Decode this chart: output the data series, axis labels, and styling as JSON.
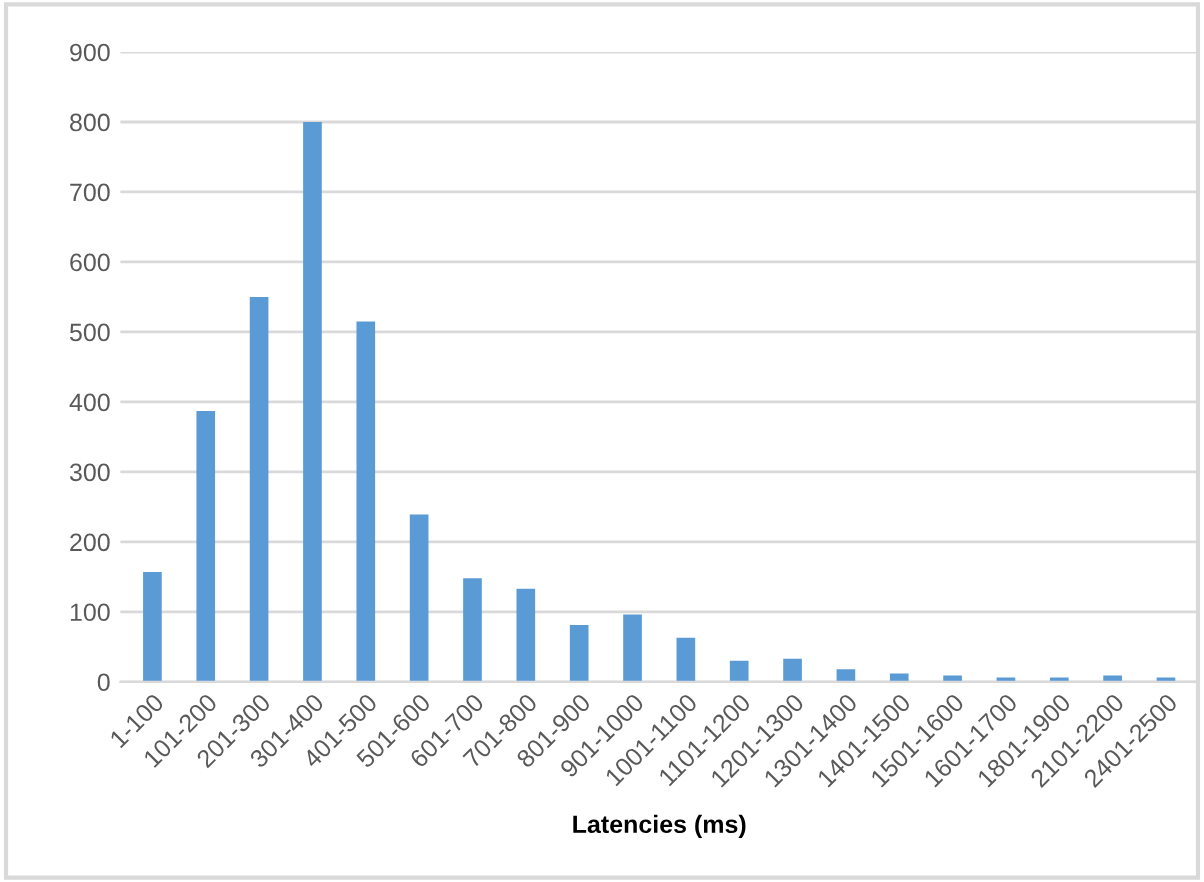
{
  "chart_data": {
    "type": "bar",
    "xlabel": "Latencies (ms)",
    "categories": [
      "1-100",
      "101-200",
      "201-300",
      "301-400",
      "401-500",
      "501-600",
      "601-700",
      "701-800",
      "801-900",
      "901-1000",
      "1001-1100",
      "1101-1200",
      "1201-1300",
      "1301-1400",
      "1401-1500",
      "1501-1600",
      "1601-1700",
      "1801-1900",
      "2101-2200",
      "2401-2500"
    ],
    "values": [
      157,
      387,
      550,
      800,
      515,
      239,
      148,
      133,
      81,
      96,
      63,
      30,
      33,
      18,
      12,
      9,
      6,
      6,
      9,
      6
    ],
    "color": "#5b9bd5",
    "ylim": [
      0,
      900
    ],
    "yticks": [
      0,
      100,
      200,
      300,
      400,
      500,
      600,
      700,
      800,
      900
    ],
    "grid": "y"
  }
}
